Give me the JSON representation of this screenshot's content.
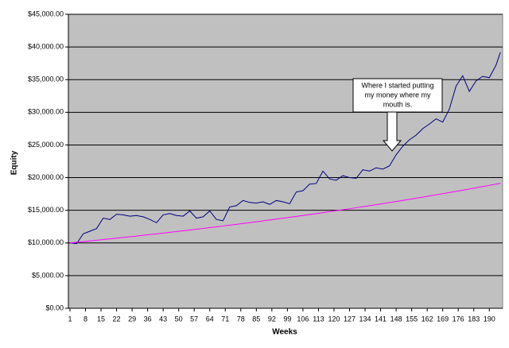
{
  "chart_data": {
    "type": "line",
    "x_label": "Weeks",
    "y_label": "Equity",
    "annotation": [
      "Where I started putting",
      "my money where my",
      "mouth is."
    ],
    "x": [
      1,
      4,
      7,
      10,
      13,
      16,
      19,
      22,
      25,
      28,
      31,
      34,
      37,
      40,
      43,
      46,
      49,
      52,
      55,
      58,
      61,
      64,
      67,
      70,
      73,
      76,
      79,
      82,
      85,
      88,
      91,
      94,
      97,
      100,
      103,
      106,
      109,
      112,
      115,
      118,
      121,
      124,
      127,
      130,
      133,
      136,
      139,
      142,
      145,
      148,
      151,
      154,
      157,
      160,
      163,
      166,
      169,
      172,
      175,
      178,
      181,
      184,
      187,
      190,
      193,
      195
    ],
    "series": [
      {
        "color": "#000080",
        "values": [
          10000,
          9900,
          11400,
          11800,
          12200,
          13800,
          13600,
          14400,
          14300,
          14100,
          14200,
          14000,
          13600,
          13100,
          14300,
          14500,
          14200,
          14100,
          14900,
          13800,
          14000,
          14900,
          13600,
          13400,
          15500,
          15700,
          16500,
          16200,
          16100,
          16300,
          15900,
          16500,
          16300,
          16000,
          17800,
          18000,
          19000,
          19100,
          21000,
          19800,
          19600,
          20300,
          20000,
          19900,
          21200,
          21000,
          21500,
          21300,
          21800,
          23500,
          24800,
          25800,
          26500,
          27500,
          28200,
          29000,
          28500,
          30500,
          34000,
          35600,
          33200,
          34800,
          35500,
          35300,
          37200,
          39200
        ]
      },
      {
        "color": "#ff00ff",
        "values": [
          10000,
          10101,
          10203,
          10306,
          10410,
          10515,
          10621,
          10728,
          10836,
          10945,
          11055,
          11167,
          11279,
          11393,
          11508,
          11624,
          11741,
          11859,
          11979,
          12100,
          12222,
          12345,
          12469,
          12595,
          12722,
          12850,
          12980,
          13111,
          13243,
          13376,
          13511,
          13647,
          13785,
          13924,
          14064,
          14206,
          14349,
          14494,
          14640,
          14788,
          14937,
          15087,
          15240,
          15393,
          15548,
          15705,
          15863,
          16023,
          16185,
          16348,
          16513,
          16679,
          16847,
          17017,
          17189,
          17362,
          17537,
          17713,
          17892,
          18072,
          18254,
          18438,
          18624,
          18812,
          19001,
          19129
        ]
      }
    ],
    "xlim": [
      0.3,
      196
    ],
    "xticks": [
      1,
      8,
      15,
      22,
      29,
      36,
      43,
      50,
      57,
      64,
      71,
      78,
      85,
      92,
      99,
      106,
      113,
      120,
      127,
      134,
      141,
      148,
      155,
      162,
      169,
      176,
      183,
      190
    ],
    "ylim": [
      0,
      45000
    ],
    "yticks": [
      {
        "value": 0,
        "label": "$0.00"
      },
      {
        "value": 5000,
        "label": "$5,000.00"
      },
      {
        "value": 10000,
        "label": "$10,000.00"
      },
      {
        "value": 15000,
        "label": "$15,000.00"
      },
      {
        "value": 20000,
        "label": "$20,000.00"
      },
      {
        "value": 25000,
        "label": "$25,000.00"
      },
      {
        "value": 30000,
        "label": "$30,000.00"
      },
      {
        "value": 35000,
        "label": "$35,000.00"
      },
      {
        "value": 40000,
        "label": "$40,000.00"
      },
      {
        "value": 45000,
        "label": "$45,000.00"
      }
    ],
    "grid": true,
    "plot_background": "#c0c0c0"
  }
}
